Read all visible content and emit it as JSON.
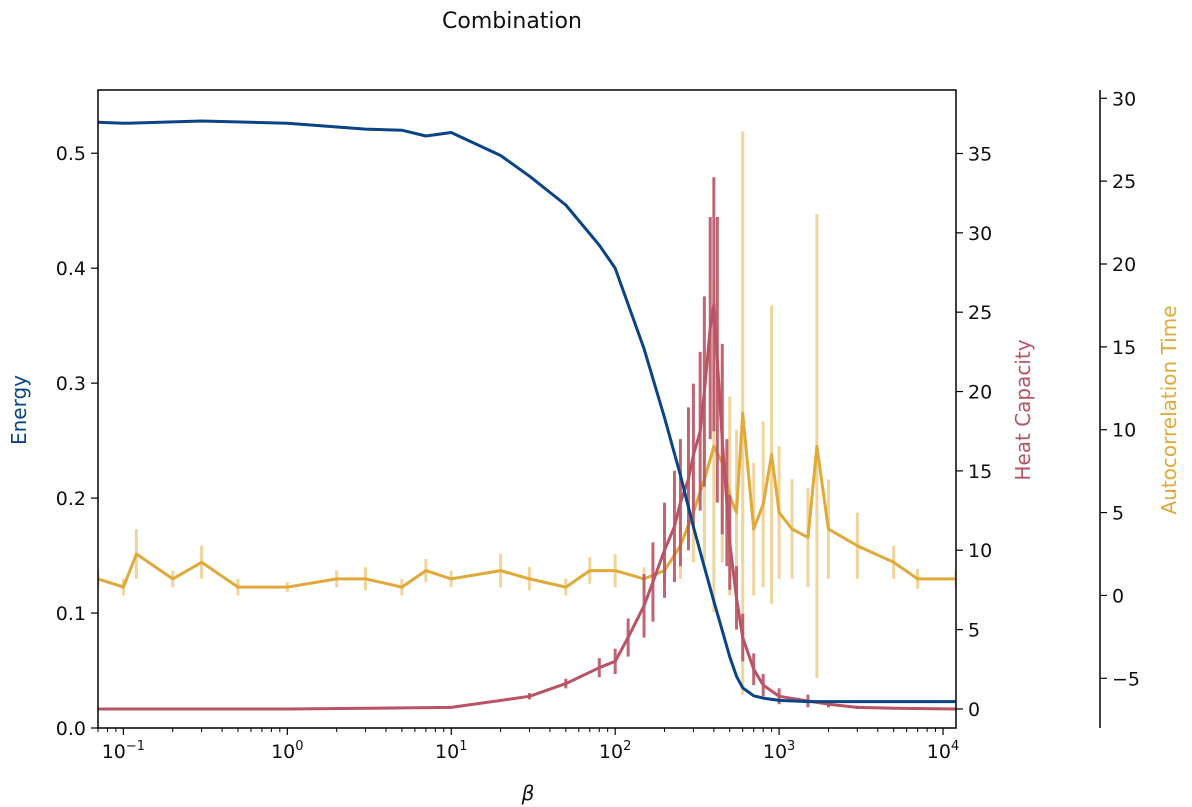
{
  "chart_data": {
    "type": "line",
    "title": "Combination",
    "xlabel": "β",
    "xscale": "log",
    "xlim": [
      0.07,
      12000
    ],
    "x_ticks": [
      {
        "value": 0.1,
        "base": "10",
        "exp": "−1"
      },
      {
        "value": 1,
        "base": "10",
        "exp": "0"
      },
      {
        "value": 10,
        "base": "10",
        "exp": "1"
      },
      {
        "value": 100,
        "base": "10",
        "exp": "2"
      },
      {
        "value": 1000,
        "base": "10",
        "exp": "3"
      },
      {
        "value": 10000,
        "base": "10",
        "exp": "4"
      }
    ],
    "axes": {
      "energy": {
        "label": "Energy",
        "color": "#0a4487",
        "ylim": [
          0.0,
          0.555
        ],
        "ticks": [
          0.0,
          0.1,
          0.2,
          0.3,
          0.4,
          0.5
        ],
        "tick_labels": [
          "0.0",
          "0.1",
          "0.2",
          "0.3",
          "0.4",
          "0.5"
        ]
      },
      "heat": {
        "label": "Heat Capacity",
        "color": "#b85466",
        "ylim": [
          -1.2,
          39.0
        ],
        "ticks": [
          0,
          5,
          10,
          15,
          20,
          25,
          30,
          35
        ],
        "tick_labels": [
          "0",
          "5",
          "10",
          "15",
          "20",
          "25",
          "30",
          "35"
        ]
      },
      "autocorr": {
        "label": "Autocorrelation Time",
        "color": "#e0a93a",
        "ylim": [
          -8.0,
          30.5
        ],
        "ticks": [
          -5,
          0,
          5,
          10,
          15,
          20,
          25,
          30
        ],
        "tick_labels": [
          "−5",
          "0",
          "5",
          "10",
          "15",
          "20",
          "25",
          "30"
        ]
      }
    },
    "series": [
      {
        "axis": "energy",
        "color": "#0a4487",
        "type": "line",
        "x": [
          0.07,
          0.1,
          0.3,
          1,
          3,
          5,
          7,
          10,
          20,
          30,
          50,
          80,
          100,
          150,
          200,
          250,
          300,
          350,
          400,
          450,
          500,
          550,
          600,
          700,
          800,
          1000,
          1500,
          2000,
          5000,
          12000
        ],
        "y": [
          0.527,
          0.526,
          0.528,
          0.526,
          0.521,
          0.52,
          0.515,
          0.518,
          0.498,
          0.48,
          0.455,
          0.42,
          0.4,
          0.33,
          0.27,
          0.22,
          0.175,
          0.14,
          0.11,
          0.085,
          0.062,
          0.045,
          0.035,
          0.028,
          0.026,
          0.024,
          0.023,
          0.023,
          0.023,
          0.023
        ]
      },
      {
        "axis": "heat",
        "color": "#b85466",
        "type": "line_errorbar",
        "x": [
          0.07,
          1,
          10,
          30,
          50,
          80,
          100,
          120,
          150,
          170,
          200,
          230,
          250,
          280,
          300,
          330,
          350,
          380,
          400,
          420,
          450,
          480,
          500,
          550,
          600,
          700,
          800,
          1000,
          1500,
          2000,
          3000,
          5000,
          12000
        ],
        "y": [
          0,
          0,
          0.1,
          0.8,
          1.6,
          2.6,
          3.0,
          4.5,
          6.5,
          8.0,
          10.0,
          11.5,
          13.0,
          14.5,
          16.0,
          17.5,
          20.0,
          24.0,
          25.5,
          22.0,
          17.0,
          13.0,
          10.5,
          7.0,
          4.5,
          2.5,
          1.5,
          0.8,
          0.5,
          0.3,
          0.1,
          0.05,
          0.0
        ],
        "err": [
          0,
          0,
          0,
          0.2,
          0.3,
          0.6,
          0.8,
          1.2,
          2.0,
          2.5,
          3.0,
          3.5,
          4.0,
          4.5,
          4.5,
          5.0,
          6.0,
          7.0,
          8.0,
          9.0,
          6.0,
          4.0,
          3.0,
          2.0,
          1.5,
          1.0,
          0.7,
          0.5,
          0.4,
          0.2,
          0.1,
          0.05,
          0.0
        ]
      },
      {
        "axis": "autocorr",
        "color": "#e0a93a",
        "type": "line_errorbar",
        "x": [
          0.07,
          0.1,
          0.12,
          0.2,
          0.3,
          0.5,
          1,
          2,
          3,
          5,
          7,
          10,
          20,
          30,
          50,
          70,
          100,
          150,
          200,
          250,
          300,
          350,
          400,
          450,
          500,
          550,
          600,
          700,
          800,
          900,
          1000,
          1200,
          1500,
          1700,
          2000,
          3000,
          5000,
          7000,
          12000
        ],
        "y": [
          1.0,
          0.5,
          2.5,
          1.0,
          2.0,
          0.5,
          0.5,
          1.0,
          1.0,
          0.5,
          1.5,
          1.0,
          1.5,
          1.0,
          0.5,
          1.5,
          1.5,
          1.0,
          1.5,
          3.0,
          5.0,
          7.0,
          9.0,
          8.0,
          6.0,
          5.0,
          11.0,
          4.0,
          5.5,
          8.5,
          5.0,
          4.0,
          3.5,
          9.0,
          4.0,
          3.0,
          2.0,
          1.0,
          1.0
        ],
        "err": [
          0.5,
          0.5,
          1.5,
          0.5,
          1.0,
          0.5,
          0.3,
          0.5,
          0.7,
          0.5,
          0.7,
          0.5,
          1.0,
          0.7,
          0.5,
          0.8,
          1.0,
          0.7,
          1.0,
          2.0,
          3.0,
          5.0,
          10.0,
          6.0,
          6.0,
          5.0,
          17.0,
          4.0,
          5.0,
          9.0,
          4.0,
          3.0,
          3.0,
          14.0,
          3.0,
          2.0,
          1.0,
          0.6,
          0.5
        ]
      }
    ]
  }
}
